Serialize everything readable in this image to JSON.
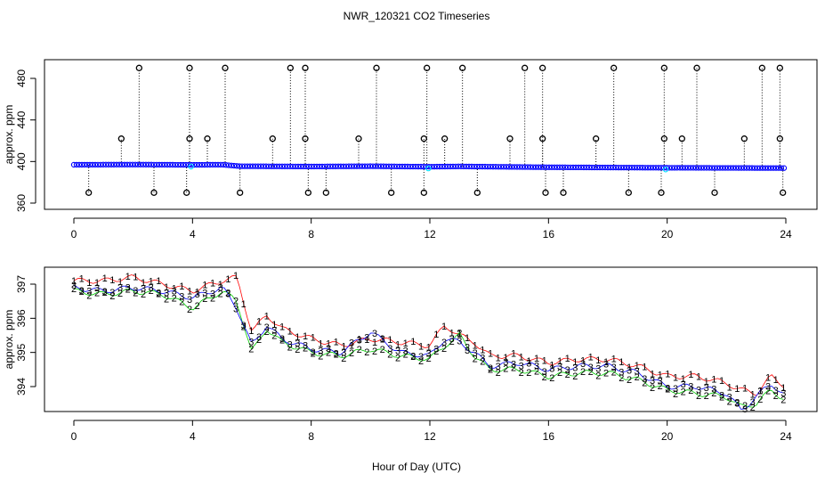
{
  "title": "NWR_120321  CO2 Timeseries",
  "xlabel": "Hour of Day (UTC)",
  "colors": {
    "stem": "#000000",
    "point": "#0000ff",
    "flag": "#000000",
    "cyan": "#00e5ff",
    "series1": "#ff0000",
    "series2": "#00cc00",
    "series3": "#0000ff"
  },
  "chart_data": [
    {
      "type": "scatter",
      "panel": "top",
      "ylabel": "approx. ppm",
      "xlim": [
        0,
        24
      ],
      "ylim": [
        360,
        490
      ],
      "xticks": [
        0,
        4,
        8,
        12,
        16,
        20,
        24
      ],
      "yticks": [
        360,
        400,
        440,
        480
      ],
      "baseline": {
        "x": [
          0,
          2,
          4,
          5,
          5.6,
          8,
          10,
          12,
          13,
          16,
          20,
          24
        ],
        "y": [
          396.9,
          397.1,
          396.8,
          397.0,
          395.5,
          395.2,
          395.5,
          395.0,
          395.3,
          394.5,
          394.0,
          393.7
        ]
      },
      "flags_high": [
        {
          "x": 1.6,
          "y": 422
        },
        {
          "x": 2.2,
          "y": 490
        },
        {
          "x": 3.9,
          "y": 422
        },
        {
          "x": 3.9,
          "y": 490
        },
        {
          "x": 4.5,
          "y": 422
        },
        {
          "x": 5.1,
          "y": 490
        },
        {
          "x": 6.7,
          "y": 422
        },
        {
          "x": 7.3,
          "y": 490
        },
        {
          "x": 7.8,
          "y": 422
        },
        {
          "x": 7.8,
          "y": 490
        },
        {
          "x": 9.6,
          "y": 422
        },
        {
          "x": 10.2,
          "y": 490
        },
        {
          "x": 11.8,
          "y": 422
        },
        {
          "x": 11.9,
          "y": 490
        },
        {
          "x": 12.5,
          "y": 422
        },
        {
          "x": 13.1,
          "y": 490
        },
        {
          "x": 14.7,
          "y": 422
        },
        {
          "x": 15.2,
          "y": 490
        },
        {
          "x": 15.8,
          "y": 422
        },
        {
          "x": 15.8,
          "y": 490
        },
        {
          "x": 17.6,
          "y": 422
        },
        {
          "x": 18.2,
          "y": 490
        },
        {
          "x": 19.9,
          "y": 422
        },
        {
          "x": 19.9,
          "y": 490
        },
        {
          "x": 20.5,
          "y": 422
        },
        {
          "x": 21.0,
          "y": 490
        },
        {
          "x": 22.6,
          "y": 422
        },
        {
          "x": 23.2,
          "y": 490
        },
        {
          "x": 23.8,
          "y": 422
        },
        {
          "x": 23.8,
          "y": 490
        }
      ],
      "flags_low": [
        {
          "x": 0.5,
          "y": 370
        },
        {
          "x": 2.7,
          "y": 370
        },
        {
          "x": 3.8,
          "y": 370
        },
        {
          "x": 5.6,
          "y": 370
        },
        {
          "x": 7.9,
          "y": 370
        },
        {
          "x": 8.5,
          "y": 370
        },
        {
          "x": 10.7,
          "y": 370
        },
        {
          "x": 11.8,
          "y": 370
        },
        {
          "x": 13.6,
          "y": 370
        },
        {
          "x": 15.9,
          "y": 370
        },
        {
          "x": 16.5,
          "y": 370
        },
        {
          "x": 18.7,
          "y": 370
        },
        {
          "x": 19.8,
          "y": 370
        },
        {
          "x": 21.6,
          "y": 370
        },
        {
          "x": 23.9,
          "y": 370
        }
      ]
    },
    {
      "type": "line",
      "panel": "bottom",
      "ylabel": "approx. ppm",
      "xlim": [
        0,
        24
      ],
      "ylim": [
        393.2,
        397.3
      ],
      "xticks": [
        0,
        4,
        8,
        12,
        16,
        20,
        24
      ],
      "yticks": [
        394,
        395,
        396,
        397
      ],
      "series": [
        {
          "name": "1",
          "x": [
            0,
            1,
            2,
            3,
            4,
            5,
            5.5,
            6,
            6.5,
            7,
            8,
            9,
            10,
            11,
            12,
            12.5,
            13,
            13.5,
            14,
            15,
            16,
            17,
            18,
            19,
            20,
            21,
            22,
            22.5,
            23,
            23.5,
            24
          ],
          "y": [
            397.1,
            397.1,
            397.2,
            397.0,
            396.8,
            397.1,
            397.2,
            395.6,
            396.1,
            395.7,
            395.4,
            395.2,
            395.4,
            395.3,
            395.2,
            395.8,
            395.5,
            395.3,
            394.9,
            394.9,
            394.7,
            394.8,
            394.8,
            394.6,
            394.3,
            394.3,
            394.1,
            393.9,
            393.8,
            394.3,
            394.0
          ]
        },
        {
          "name": "2",
          "x": [
            0,
            1,
            2,
            3,
            4,
            5,
            5.5,
            6,
            6.5,
            7,
            8,
            9,
            10,
            11,
            12,
            12.5,
            13,
            13.5,
            14,
            15,
            16,
            17,
            18,
            19,
            20,
            21,
            22,
            22.5,
            23,
            23.5,
            24
          ],
          "y": [
            396.8,
            396.7,
            396.8,
            396.7,
            396.3,
            396.8,
            396.5,
            395.0,
            395.7,
            395.3,
            395.0,
            394.9,
            395.1,
            394.9,
            394.8,
            395.2,
            395.5,
            394.9,
            394.5,
            394.5,
            394.3,
            394.4,
            394.4,
            394.2,
            393.9,
            393.8,
            393.7,
            393.4,
            393.5,
            393.9,
            393.6
          ]
        },
        {
          "name": "3",
          "x": [
            0,
            1,
            2,
            3,
            4,
            5,
            5.5,
            6,
            6.5,
            7,
            8,
            9,
            10,
            11,
            12,
            12.5,
            13,
            13.5,
            14,
            15,
            16,
            17,
            18,
            19,
            20,
            21,
            22,
            22.5,
            23,
            23.5,
            24
          ],
          "y": [
            396.9,
            396.8,
            396.9,
            396.8,
            396.6,
            396.9,
            396.3,
            395.2,
            395.8,
            395.4,
            395.1,
            395.0,
            395.6,
            395.0,
            394.9,
            395.4,
            395.3,
            395.0,
            394.6,
            394.7,
            394.5,
            394.6,
            394.6,
            394.4,
            394.0,
            394.0,
            393.8,
            393.3,
            393.7,
            394.1,
            393.7
          ]
        }
      ]
    }
  ]
}
